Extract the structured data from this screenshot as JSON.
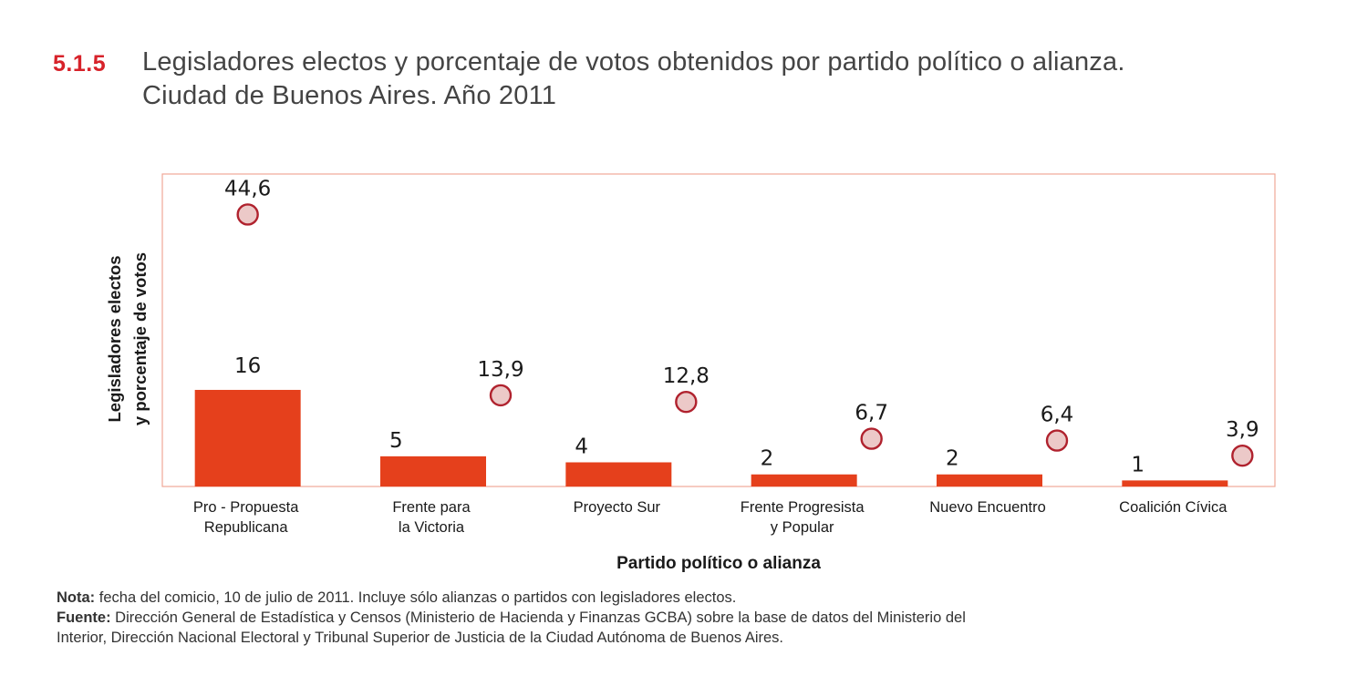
{
  "title": {
    "number": "5.1.5",
    "line1": "Legisladores electos y porcentaje de votos obtenidos por partido político o alianza.",
    "line2": "Ciudad de Buenos Aires.  Año 2011"
  },
  "notes": {
    "nota_label": "Nota:",
    "nota_text": " fecha del comicio, 10 de julio de 2011. Incluye sólo alianzas o partidos con legisladores electos.",
    "fuente_label": "Fuente:",
    "fuente_line1": " Dirección General de Estadística y Censos (Ministerio de Hacienda y Finanzas GCBA) sobre la base de datos del Ministerio del",
    "fuente_line2": "Interior, Dirección Nacional Electoral y Tribunal Superior de Justicia de la Ciudad Autónoma de Buenos Aires."
  },
  "colors": {
    "bar": "#e5401c",
    "marker_fill": "#ecc9c8",
    "marker_stroke": "#b0222e",
    "frame": "#f0a898",
    "text": "#1a1a1a"
  },
  "chart_data": {
    "type": "bar",
    "xlabel": "Partido político o alianza",
    "ylabel": [
      "Legisladores  electos",
      "y porcentaje de votos"
    ],
    "ylim": [
      0,
      50
    ],
    "grid": false,
    "categories": [
      [
        "Pro - Propuesta",
        "Republicana"
      ],
      [
        "Frente para",
        "la Victoria"
      ],
      [
        "Proyecto Sur"
      ],
      [
        "Frente Progresista",
        "y Popular"
      ],
      [
        "Nuevo Encuentro"
      ],
      [
        "Coalición Cívica"
      ]
    ],
    "series": [
      {
        "name": "Legisladores electos",
        "type": "bar",
        "values": [
          16,
          5,
          4,
          2,
          2,
          1
        ],
        "labels": [
          "16",
          "5",
          "4",
          "2",
          "2",
          "1"
        ]
      },
      {
        "name": "Porcentaje de votos",
        "type": "scatter",
        "values": [
          44.6,
          13.9,
          12.8,
          6.7,
          6.4,
          3.9
        ],
        "labels": [
          "44,6",
          "13,9",
          "12,8",
          "6,7",
          "6,4",
          "3,9"
        ]
      }
    ]
  }
}
